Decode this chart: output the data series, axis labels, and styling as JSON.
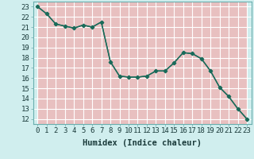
{
  "x": [
    0,
    1,
    2,
    3,
    4,
    5,
    6,
    7,
    8,
    9,
    10,
    11,
    12,
    13,
    14,
    15,
    16,
    17,
    18,
    19,
    20,
    21,
    22,
    23
  ],
  "y": [
    23.0,
    22.3,
    21.3,
    21.1,
    20.9,
    21.2,
    21.0,
    21.5,
    17.6,
    16.2,
    16.1,
    16.1,
    16.2,
    16.7,
    16.7,
    17.5,
    18.5,
    18.4,
    17.9,
    16.7,
    15.1,
    14.2,
    13.0,
    12.0
  ],
  "line_color": "#1a6b5a",
  "marker": "D",
  "markersize": 2.5,
  "linewidth": 1.0,
  "xlabel": "Humidex (Indice chaleur)",
  "bg_color": "#d0eeee",
  "grid_color": "#ffffff",
  "grid_minor_color": "#e8c8c8",
  "ylabel_ticks": [
    12,
    13,
    14,
    15,
    16,
    17,
    18,
    19,
    20,
    21,
    22,
    23
  ],
  "xlim": [
    -0.5,
    23.5
  ],
  "ylim": [
    11.5,
    23.5
  ],
  "xlabel_fontsize": 7.5,
  "tick_fontsize": 6.5
}
